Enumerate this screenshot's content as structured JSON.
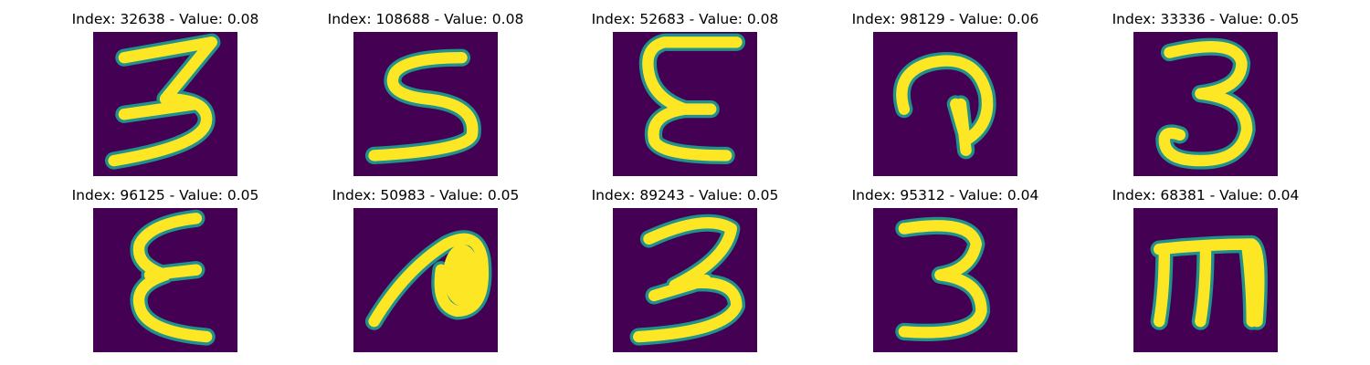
{
  "panels": [
    {
      "title": "Index: 32638 - Value: 0.08",
      "glyph": "3-a"
    },
    {
      "title": "Index: 108688 - Value: 0.08",
      "glyph": "S"
    },
    {
      "title": "Index: 52683 - Value: 0.08",
      "glyph": "epsilon-a"
    },
    {
      "title": "Index: 98129 - Value: 0.06",
      "glyph": "hook"
    },
    {
      "title": "Index: 33336 - Value: 0.05",
      "glyph": "3-b"
    },
    {
      "title": "Index: 96125 - Value: 0.05",
      "glyph": "epsilon-b"
    },
    {
      "title": "Index: 50983 - Value: 0.05",
      "glyph": "loop"
    },
    {
      "title": "Index: 89243 - Value: 0.05",
      "glyph": "3-c"
    },
    {
      "title": "Index: 95312 - Value: 0.04",
      "glyph": "3-d"
    },
    {
      "title": "Index: 68381 - Value: 0.04",
      "glyph": "m"
    }
  ],
  "colors": {
    "background": "#440154",
    "stroke": "#fde725",
    "edge": "#21918c"
  }
}
